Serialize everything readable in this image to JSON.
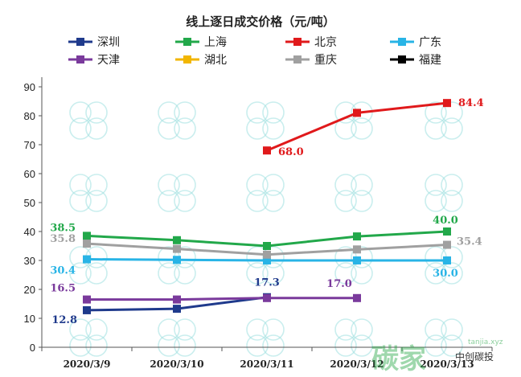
{
  "chart_data": {
    "type": "line",
    "title": "线上逐日成交价格（元/吨）",
    "categories": [
      "2020/3/9",
      "2020/3/10",
      "2020/3/11",
      "2020/3/12",
      "2020/3/13"
    ],
    "ylim": [
      0,
      90
    ],
    "yticks": [
      0,
      10,
      20,
      30,
      40,
      50,
      60,
      70,
      80,
      90
    ],
    "grid": false,
    "legend_position": "top",
    "series": [
      {
        "name": "深圳",
        "color": "#1f3a8c",
        "marker": "square",
        "values": [
          12.8,
          13.3,
          17.3,
          null,
          null
        ],
        "labels": [
          "12.8",
          null,
          "17.3",
          null,
          null
        ]
      },
      {
        "name": "上海",
        "color": "#22a84a",
        "marker": "square",
        "values": [
          38.5,
          37.0,
          35.0,
          38.3,
          40.0
        ],
        "labels": [
          "38.5",
          null,
          null,
          null,
          "40.0"
        ]
      },
      {
        "name": "北京",
        "color": "#e0191b",
        "marker": "square",
        "values": [
          null,
          null,
          68.0,
          81.0,
          84.4
        ],
        "labels": [
          null,
          null,
          "68.0",
          null,
          "84.4"
        ]
      },
      {
        "name": "广东",
        "color": "#28b4e6",
        "marker": "square",
        "values": [
          30.4,
          30.2,
          30.0,
          30.0,
          30.0
        ],
        "labels": [
          "30.4",
          null,
          null,
          null,
          "30.0"
        ]
      },
      {
        "name": "天津",
        "color": "#7a3a9c",
        "marker": "square",
        "values": [
          16.5,
          16.5,
          17.0,
          17.0,
          null
        ],
        "labels": [
          "16.5",
          null,
          null,
          "17.0",
          null
        ]
      },
      {
        "name": "湖北",
        "color": "#f2b600",
        "marker": "square",
        "values": [
          null,
          null,
          null,
          null,
          null
        ],
        "labels": [
          null,
          null,
          null,
          null,
          null
        ]
      },
      {
        "name": "重庆",
        "color": "#a0a0a0",
        "marker": "square",
        "values": [
          35.8,
          34.0,
          32.0,
          33.8,
          35.4
        ],
        "labels": [
          "35.8",
          null,
          null,
          null,
          "35.4"
        ]
      },
      {
        "name": "福建",
        "color": "#000000",
        "marker": "square",
        "values": [
          null,
          null,
          null,
          null,
          null
        ],
        "labels": [
          null,
          null,
          null,
          null,
          null
        ]
      }
    ]
  },
  "watermark": {
    "logo_text": "碳家",
    "wechat_text": "中创碳投",
    "url_text": "tanjia.xyz"
  }
}
